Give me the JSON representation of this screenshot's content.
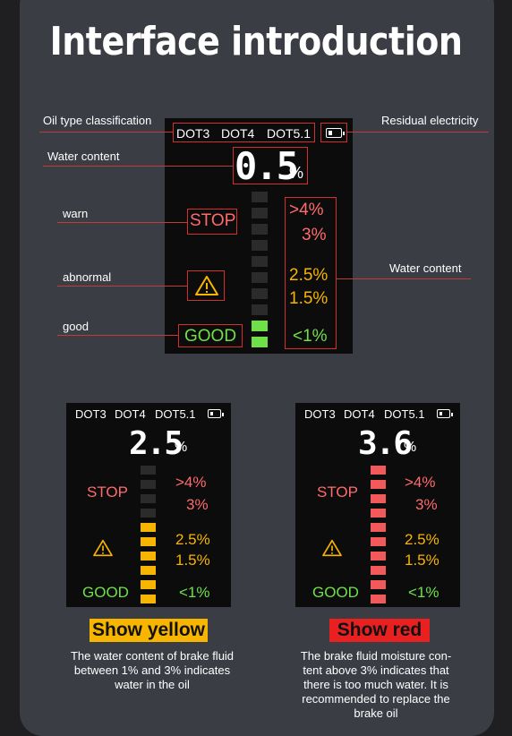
{
  "title": "Interface introduction",
  "labels": {
    "oil_type": "Oil type classification",
    "residual": "Residual electricity",
    "water_content_left": "Water content",
    "warn": "warn",
    "abnormal": "abnormal",
    "good": "good",
    "water_content_right": "Water content"
  },
  "screen": {
    "dot3": "DOT3",
    "dot4": "DOT4",
    "dot51": "DOT5.1",
    "stop": "STOP",
    "good": "GOOD",
    "pct_sign": "%",
    "levels": [
      ">4%",
      "3%",
      "2.5%",
      "1.5%",
      "<1%"
    ]
  },
  "main_screen": {
    "reading": "0.5"
  },
  "yellow_screen": {
    "reading": "2.5"
  },
  "red_screen": {
    "reading": "3.6"
  },
  "badges": {
    "yellow": "Show yellow",
    "red": "Show red"
  },
  "descriptions": {
    "yellow": [
      "The water content of brake fluid",
      "between 1% and 3% indicates",
      "water in the oil"
    ],
    "red": [
      "The brake fluid moisture con-",
      "tent above 3% indicates that",
      "there is too much water. It is",
      "recommended to replace the",
      "brake oil"
    ]
  },
  "colors": {
    "red": "#ff6b6b",
    "yellow": "#f7b500",
    "green": "#6fe04a",
    "badge_yellow": "#f7b500",
    "badge_red": "#e82020"
  },
  "icons": [
    "warning-triangle-icon",
    "battery-icon"
  ]
}
